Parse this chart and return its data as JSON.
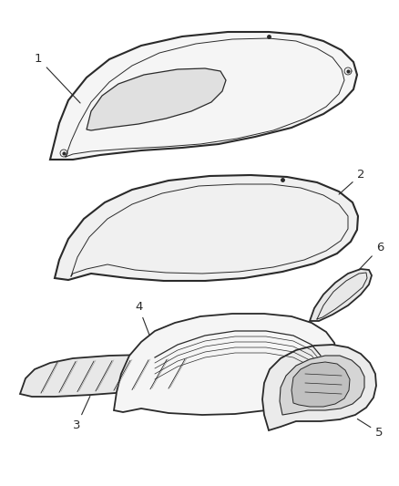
{
  "background_color": "#ffffff",
  "line_color": "#2a2a2a",
  "fill_color": "#f0f0f0",
  "shadow_color": "#c8c8c8",
  "label_color": "#1a1a1a",
  "figsize": [
    4.38,
    5.33
  ],
  "dpi": 100
}
